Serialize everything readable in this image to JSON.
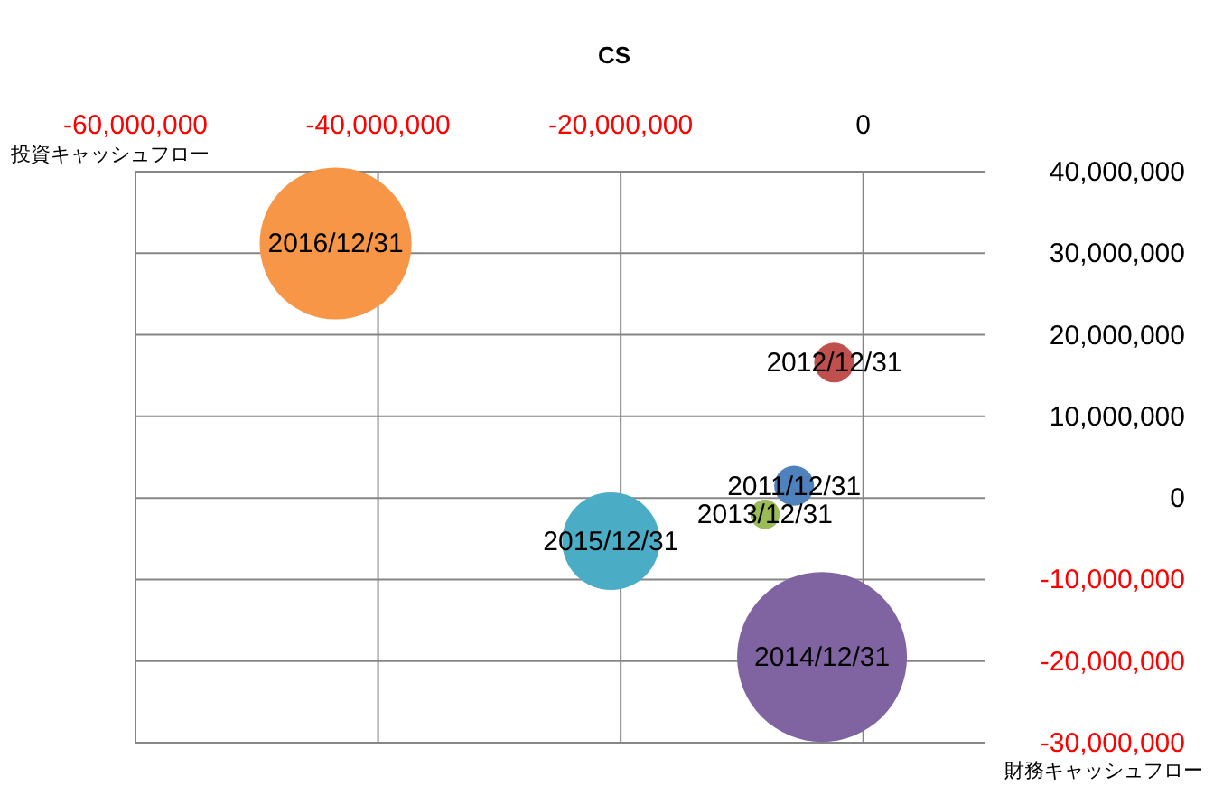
{
  "chart_data": {
    "type": "bubble",
    "title": "CS",
    "xlabel": "投資キャッシュフロー",
    "ylabel": "財務キャッシュフロー",
    "xlim": [
      -60000000,
      10000000
    ],
    "xticks": [
      {
        "value": -60000000,
        "label": "-60,000,000"
      },
      {
        "value": -40000000,
        "label": "-40,000,000"
      },
      {
        "value": -20000000,
        "label": "-20,000,000"
      },
      0
    ],
    "ylim": [
      -30000000,
      40000000
    ],
    "yticks": [
      {
        "value": -30000000,
        "label": "-30,000,000"
      },
      {
        "value": -20000000,
        "label": "-20,000,000"
      },
      {
        "value": -10000000,
        "label": "-10,000,000"
      },
      0,
      {
        "value": 10000000,
        "label": "10,000,000"
      },
      {
        "value": 20000000,
        "label": "20,000,000"
      },
      {
        "value": 30000000,
        "label": "30,000,000"
      },
      {
        "value": 40000000,
        "label": "40,000,000"
      }
    ],
    "grid": true,
    "legend": false,
    "series": [
      {
        "name": "2011/12/31",
        "color": "#4f81bd",
        "x": [
          -5700000
        ],
        "values": [
          1500000
        ],
        "sizes": [
          0.055
        ]
      },
      {
        "name": "2012/12/31",
        "color": "#c0504d",
        "x": [
          -2400000
        ],
        "values": [
          16600000
        ],
        "sizes": [
          0.055
        ]
      },
      {
        "name": "2013/12/31",
        "color": "#9bbb59",
        "x": [
          -8100000
        ],
        "values": [
          -2000000
        ],
        "sizes": [
          0.03
        ]
      },
      {
        "name": "2014/12/31",
        "color": "#8064a2",
        "x": [
          -3400000
        ],
        "values": [
          -19500000
        ],
        "sizes": [
          1
        ]
      },
      {
        "name": "2015/12/31",
        "color": "#4bacc6",
        "x": [
          -20800000
        ],
        "values": [
          -5300000
        ],
        "sizes": [
          0.33
        ]
      },
      {
        "name": "2016/12/31",
        "color": "#f79646",
        "x": [
          -43500000
        ],
        "values": [
          31200000
        ],
        "sizes": [
          0.8
        ]
      }
    ]
  }
}
